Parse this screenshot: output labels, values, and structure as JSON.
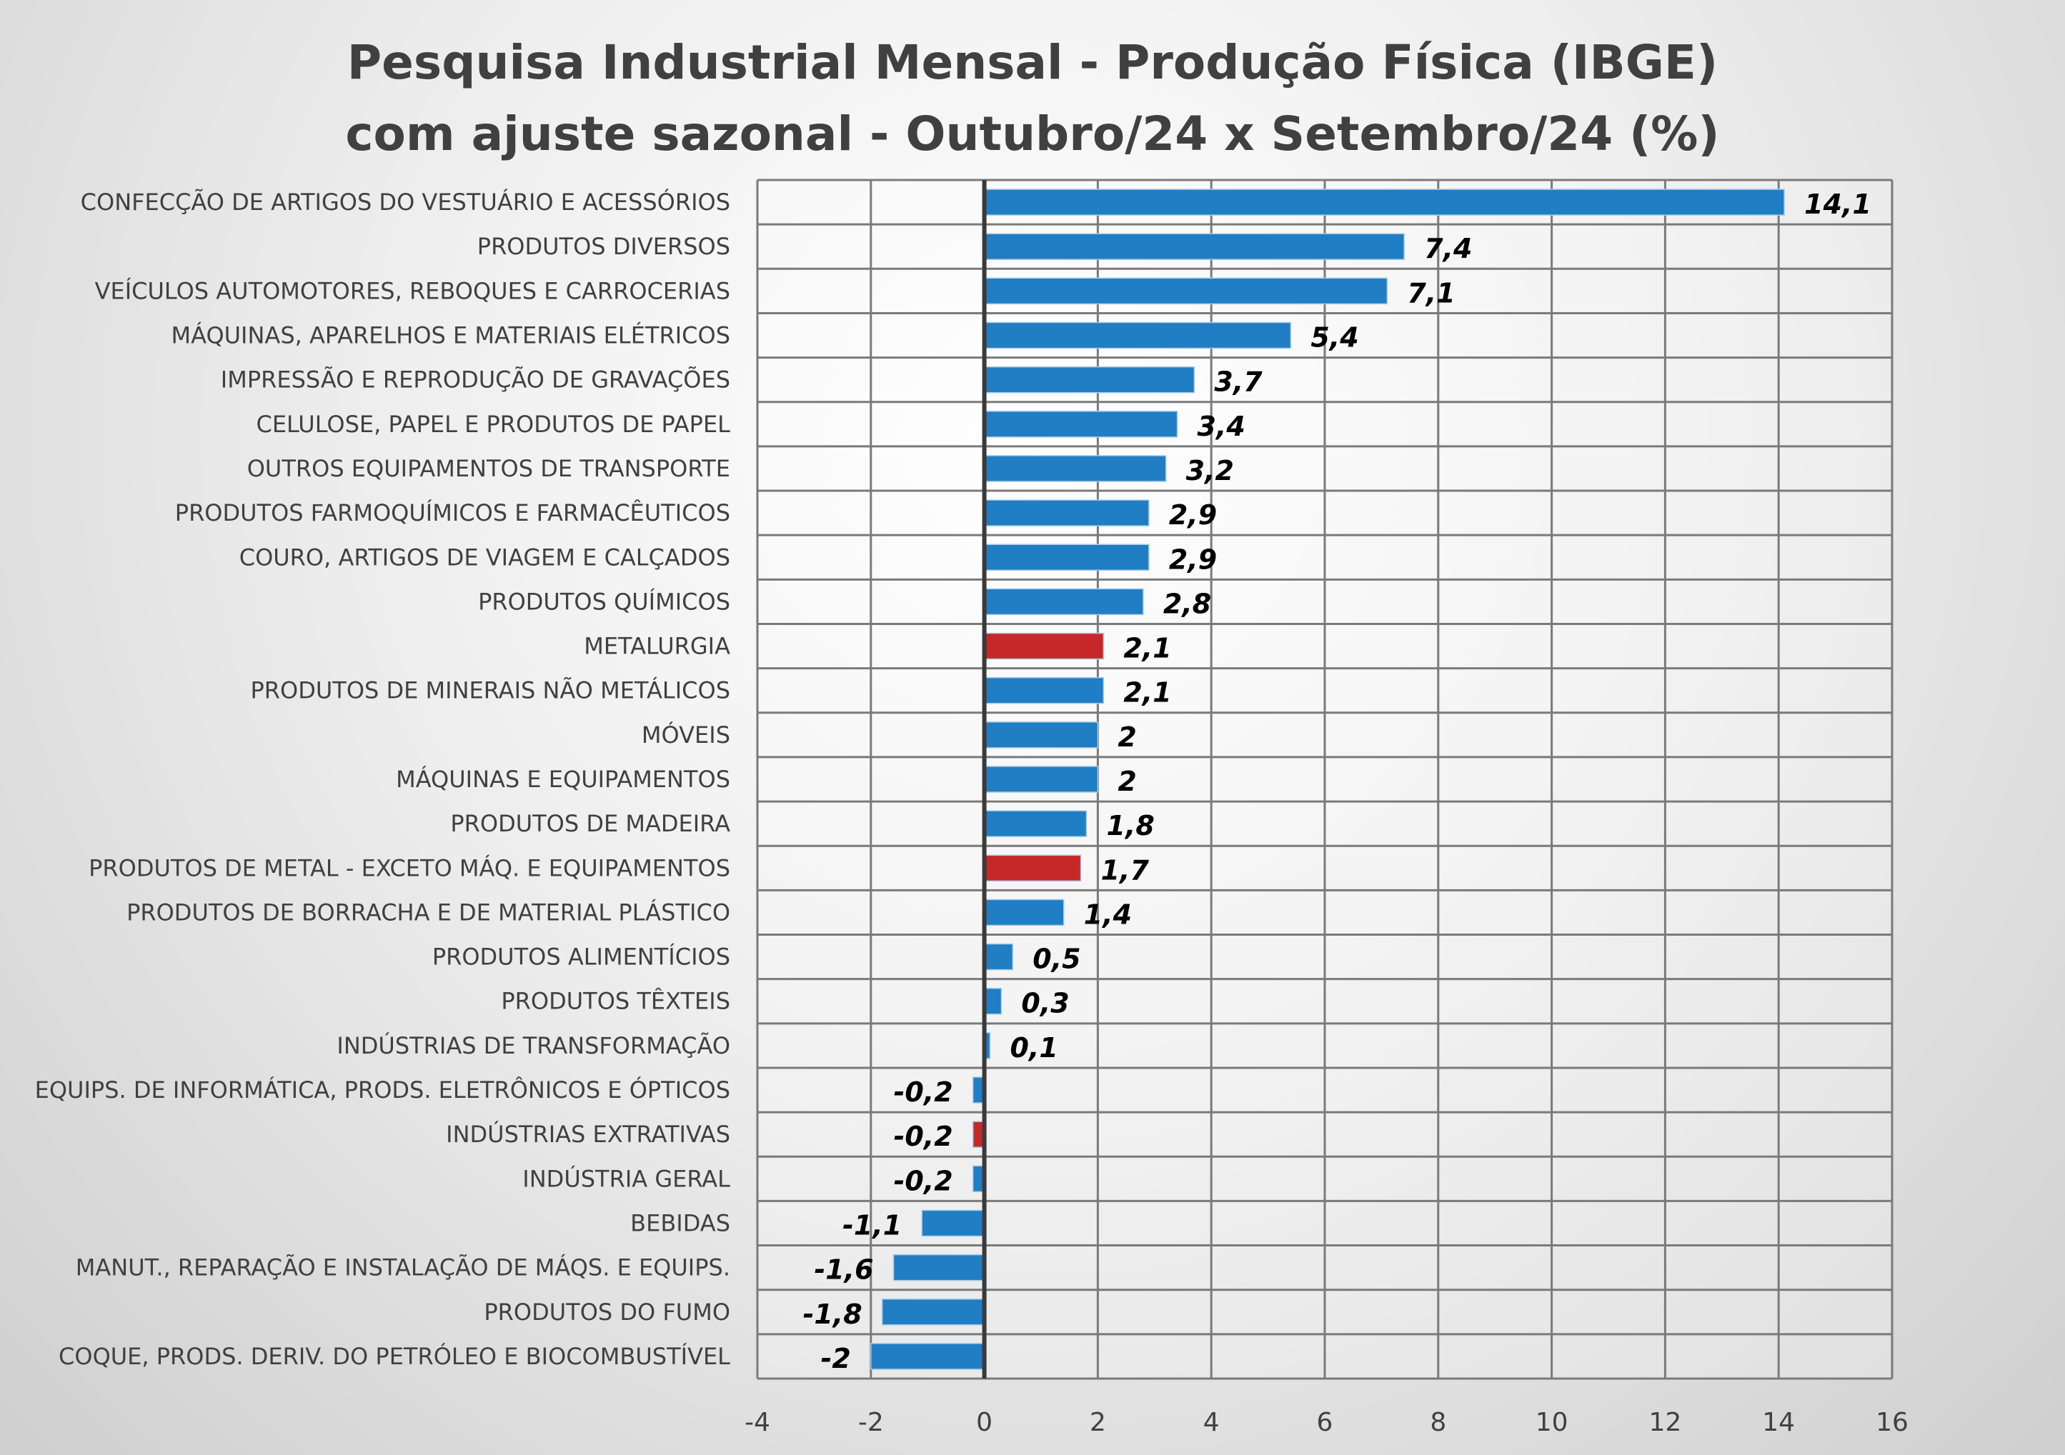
{
  "chart_data": {
    "type": "bar",
    "orientation": "horizontal",
    "title": [
      "Pesquisa Industrial Mensal - Produção Física (IBGE)",
      "com ajuste sazonal - Outubro/24 x Setembro/24 (%)"
    ],
    "xlabel": "",
    "ylabel": "",
    "xlim": [
      -4,
      16
    ],
    "xticks": [
      -4,
      -2,
      0,
      2,
      4,
      6,
      8,
      10,
      12,
      14,
      16
    ],
    "grid": true,
    "colors": {
      "default": "#1f7ec4",
      "highlight": "#c62828"
    },
    "categories": [
      "CONFECÇÃO DE ARTIGOS DO VESTUÁRIO E ACESSÓRIOS",
      "PRODUTOS DIVERSOS",
      "VEÍCULOS AUTOMOTORES, REBOQUES E CARROCERIAS",
      "MÁQUINAS, APARELHOS E MATERIAIS ELÉTRICOS",
      "IMPRESSÃO E REPRODUÇÃO DE GRAVAÇÕES",
      "CELULOSE, PAPEL E PRODUTOS DE PAPEL",
      "OUTROS EQUIPAMENTOS DE TRANSPORTE",
      "PRODUTOS FARMOQUÍMICOS E FARMACÊUTICOS",
      "COURO, ARTIGOS DE VIAGEM E CALÇADOS",
      "PRODUTOS QUÍMICOS",
      "METALURGIA",
      "PRODUTOS DE MINERAIS NÃO METÁLICOS",
      "MÓVEIS",
      "MÁQUINAS E EQUIPAMENTOS",
      "PRODUTOS DE MADEIRA",
      "PRODUTOS DE METAL - EXCETO MÁQ. E EQUIPAMENTOS",
      "PRODUTOS DE BORRACHA E DE MATERIAL PLÁSTICO",
      "PRODUTOS ALIMENTÍCIOS",
      "PRODUTOS TÊXTEIS",
      "INDÚSTRIAS DE TRANSFORMAÇÃO",
      "EQUIPS. DE INFORMÁTICA, PRODS. ELETRÔNICOS E ÓPTICOS",
      "INDÚSTRIAS EXTRATIVAS",
      "INDÚSTRIA GERAL",
      "BEBIDAS",
      "MANUT., REPARAÇÃO E INSTALAÇÃO DE MÁQS. E EQUIPS.",
      "PRODUTOS DO FUMO",
      "COQUE, PRODS. DERIV. DO PETRÓLEO E BIOCOMBUSTÍVEL"
    ],
    "values": [
      14.1,
      7.4,
      7.1,
      5.4,
      3.7,
      3.4,
      3.2,
      2.9,
      2.9,
      2.8,
      2.1,
      2.1,
      2,
      2,
      1.8,
      1.7,
      1.4,
      0.5,
      0.3,
      0.1,
      -0.2,
      -0.2,
      -0.2,
      -1.1,
      -1.6,
      -1.8,
      -2
    ],
    "value_labels": [
      "14,1",
      "7,4",
      "7,1",
      "5,4",
      "3,7",
      "3,4",
      "3,2",
      "2,9",
      "2,9",
      "2,8",
      "2,1",
      "2,1",
      "2",
      "2",
      "1,8",
      "1,7",
      "1,4",
      "0,5",
      "0,3",
      "0,1",
      "-0,2",
      "-0,2",
      "-0,2",
      "-1,1",
      "-1,6",
      "-1,8",
      "-2"
    ],
    "highlighted": [
      false,
      false,
      false,
      false,
      false,
      false,
      false,
      false,
      false,
      false,
      true,
      false,
      false,
      false,
      false,
      true,
      false,
      false,
      false,
      false,
      false,
      true,
      false,
      false,
      false,
      false,
      false
    ]
  }
}
